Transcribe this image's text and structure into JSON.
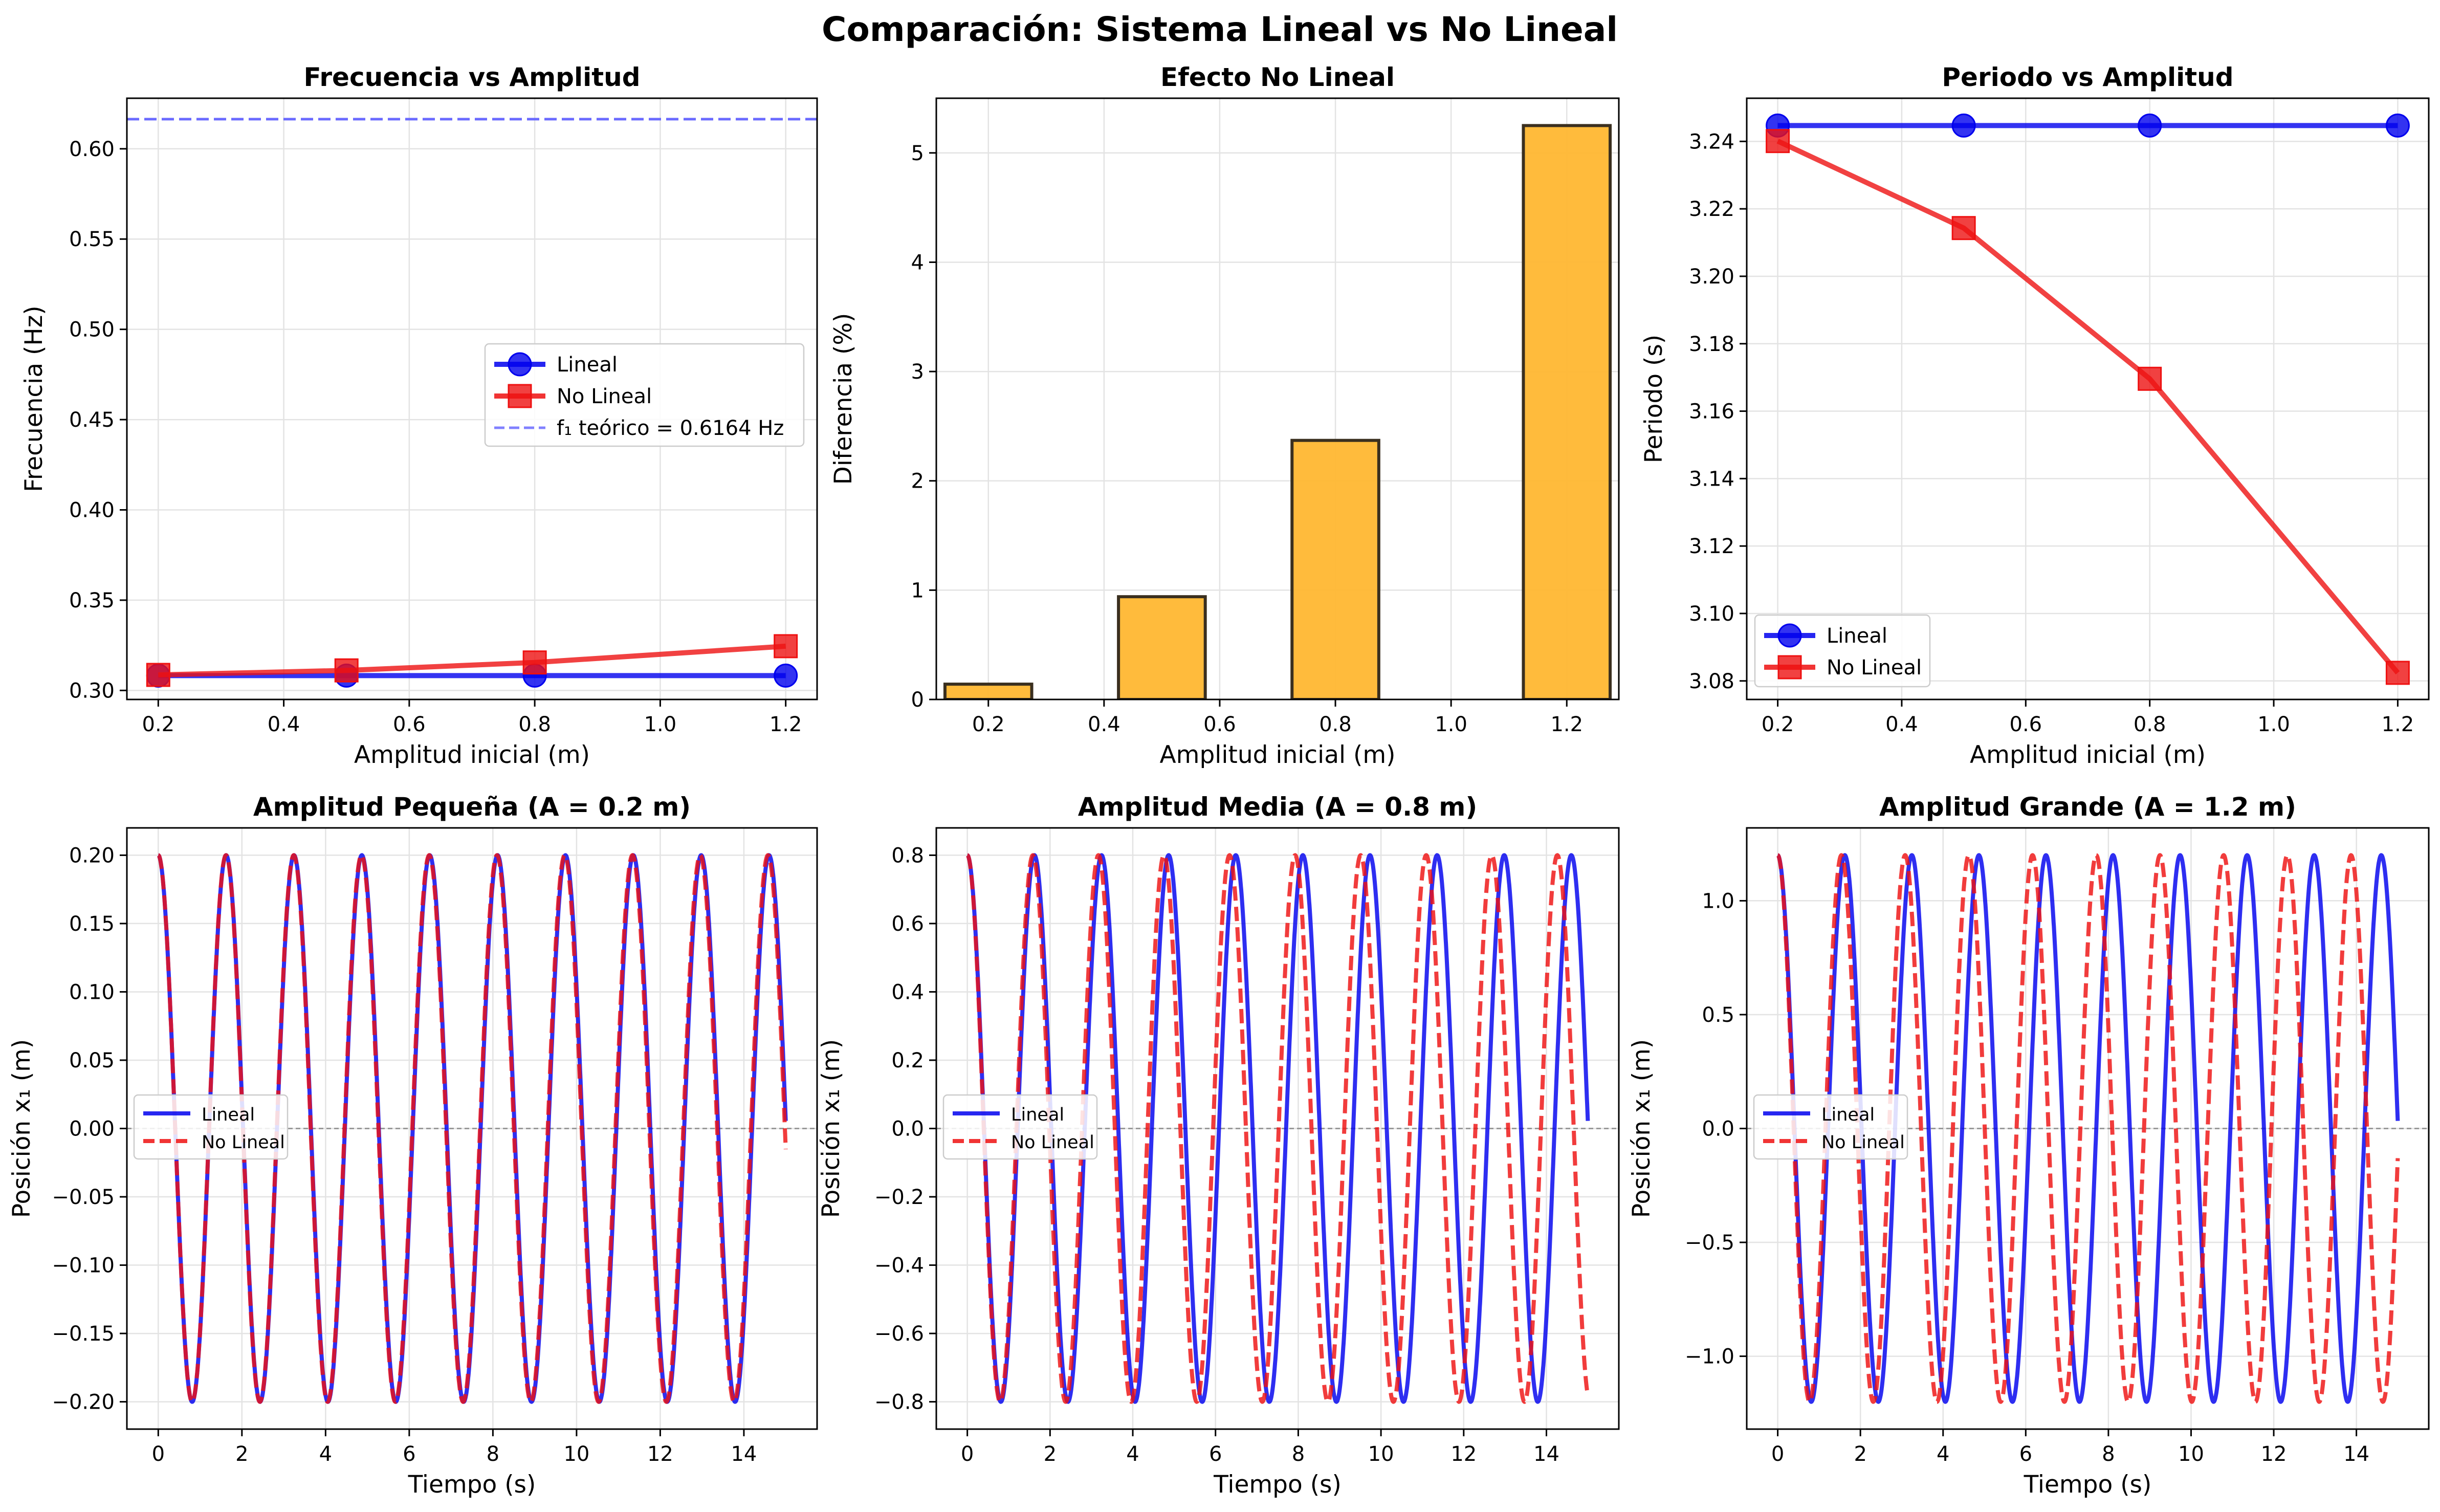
{
  "figure": {
    "suptitle": "Comparación: Sistema Lineal vs No Lineal"
  },
  "colors": {
    "lineal": "#0000ee",
    "no_lineal": "#ee1111",
    "bar_fill": "#ffb732",
    "bar_edge": "#3a2f1f",
    "theory_line": "#6a6aff",
    "grid": "#e3e3e3"
  },
  "chart_data": [
    {
      "id": "freq",
      "type": "line",
      "title": "Frecuencia vs Amplitud",
      "xlabel": "Amplitud inicial (m)",
      "ylabel": "Frecuencia (Hz)",
      "xlim": [
        0.15,
        1.25
      ],
      "ylim": [
        0.295,
        0.628
      ],
      "xticks": [
        0.2,
        0.4,
        0.6,
        0.8,
        1.0,
        1.2
      ],
      "xtick_labels": [
        "0.2",
        "0.4",
        "0.6",
        "0.8",
        "1.0",
        "1.2"
      ],
      "yticks": [
        0.3,
        0.35,
        0.4,
        0.45,
        0.5,
        0.55,
        0.6
      ],
      "ytick_labels": [
        "0.30",
        "0.35",
        "0.40",
        "0.45",
        "0.50",
        "0.55",
        "0.60"
      ],
      "grid": true,
      "legend_position": "center-right",
      "series": [
        {
          "name": "Lineal",
          "marker": "circle",
          "x": [
            0.2,
            0.5,
            0.8,
            1.2
          ],
          "y": [
            0.3082,
            0.3082,
            0.3082,
            0.3082
          ]
        },
        {
          "name": "No Lineal",
          "marker": "square",
          "x": [
            0.2,
            0.5,
            0.8,
            1.2
          ],
          "y": [
            0.3086,
            0.3111,
            0.3155,
            0.3245
          ]
        }
      ],
      "reference_line": {
        "name": "f₁ teórico = 0.6164 Hz",
        "y": 0.6164,
        "style": "dashed"
      }
    },
    {
      "id": "diff",
      "type": "bar",
      "title": "Efecto No Lineal",
      "xlabel": "Amplitud inicial (m)",
      "ylabel": "Diferencia (%)",
      "xlim": [
        0.11,
        1.29
      ],
      "ylim": [
        0,
        5.5
      ],
      "xticks": [
        0.2,
        0.4,
        0.6,
        0.8,
        1.0,
        1.2
      ],
      "xtick_labels": [
        "0.2",
        "0.4",
        "0.6",
        "0.8",
        "1.0",
        "1.2"
      ],
      "yticks": [
        0,
        1,
        2,
        3,
        4,
        5
      ],
      "ytick_labels": [
        "0",
        "1",
        "2",
        "3",
        "4",
        "5"
      ],
      "grid": true,
      "bar_width": 0.15,
      "x": [
        0.2,
        0.5,
        0.8,
        1.2
      ],
      "values": [
        0.14,
        0.94,
        2.37,
        5.25
      ]
    },
    {
      "id": "period",
      "type": "line",
      "title": "Periodo vs Amplitud",
      "xlabel": "Amplitud inicial (m)",
      "ylabel": "Periodo (s)",
      "xlim": [
        0.15,
        1.25
      ],
      "ylim": [
        3.0745,
        3.2528
      ],
      "xticks": [
        0.2,
        0.4,
        0.6,
        0.8,
        1.0,
        1.2
      ],
      "xtick_labels": [
        "0.2",
        "0.4",
        "0.6",
        "0.8",
        "1.0",
        "1.2"
      ],
      "yticks": [
        3.08,
        3.1,
        3.12,
        3.14,
        3.16,
        3.18,
        3.2,
        3.22,
        3.24
      ],
      "ytick_labels": [
        "3.08",
        "3.10",
        "3.12",
        "3.14",
        "3.16",
        "3.18",
        "3.20",
        "3.22",
        "3.24"
      ],
      "grid": true,
      "legend_position": "lower-left",
      "series": [
        {
          "name": "Lineal",
          "marker": "circle",
          "x": [
            0.2,
            0.5,
            0.8,
            1.2
          ],
          "y": [
            3.2447,
            3.2447,
            3.2447,
            3.2447
          ]
        },
        {
          "name": "No Lineal",
          "marker": "square",
          "x": [
            0.2,
            0.5,
            0.8,
            1.2
          ],
          "y": [
            3.2401,
            3.2143,
            3.1696,
            3.0824
          ]
        }
      ]
    },
    {
      "id": "small",
      "type": "line",
      "title": "Amplitud Pequeña (A = 0.2 m)",
      "xlabel": "Tiempo (s)",
      "ylabel": "Posición x₁ (m)",
      "xlim": [
        -0.75,
        15.75
      ],
      "ylim": [
        -0.22,
        0.22
      ],
      "xticks": [
        0,
        2,
        4,
        6,
        8,
        10,
        12,
        14
      ],
      "xtick_labels": [
        "0",
        "2",
        "4",
        "6",
        "8",
        "10",
        "12",
        "14"
      ],
      "yticks": [
        -0.2,
        -0.15,
        -0.1,
        -0.05,
        0,
        0.05,
        0.1,
        0.15,
        0.2
      ],
      "ytick_labels": [
        "−0.20",
        "−0.15",
        "−0.10",
        "−0.05",
        "0.00",
        "0.05",
        "0.10",
        "0.15",
        "0.20"
      ],
      "grid": true,
      "legend_position": "center-left",
      "zero_line": true,
      "t_range": [
        0,
        15
      ],
      "series": [
        {
          "name": "Lineal",
          "style": "solid",
          "amplitude": 0.2,
          "period": 1.6224
        },
        {
          "name": "No Lineal",
          "style": "dashed",
          "amplitude": 0.2,
          "period": 1.6195
        }
      ]
    },
    {
      "id": "medium",
      "type": "line",
      "title": "Amplitud Media (A = 0.8 m)",
      "xlabel": "Tiempo (s)",
      "ylabel": "Posición x₁ (m)",
      "xlim": [
        -0.75,
        15.75
      ],
      "ylim": [
        -0.88,
        0.88
      ],
      "xticks": [
        0,
        2,
        4,
        6,
        8,
        10,
        12,
        14
      ],
      "xtick_labels": [
        "0",
        "2",
        "4",
        "6",
        "8",
        "10",
        "12",
        "14"
      ],
      "yticks": [
        -0.8,
        -0.6,
        -0.4,
        -0.2,
        0,
        0.2,
        0.4,
        0.6,
        0.8
      ],
      "ytick_labels": [
        "−0.8",
        "−0.6",
        "−0.4",
        "−0.2",
        "0.0",
        "0.2",
        "0.4",
        "0.6",
        "0.8"
      ],
      "grid": true,
      "legend_position": "center-left",
      "zero_line": true,
      "t_range": [
        0,
        15
      ],
      "series": [
        {
          "name": "Lineal",
          "style": "solid",
          "amplitude": 0.8,
          "period": 1.6224
        },
        {
          "name": "No Lineal",
          "style": "dashed",
          "amplitude": 0.8,
          "period": 1.5848
        }
      ]
    },
    {
      "id": "large",
      "type": "line",
      "title": "Amplitud Grande (A = 1.2 m)",
      "xlabel": "Tiempo (s)",
      "ylabel": "Posición x₁ (m)",
      "xlim": [
        -0.75,
        15.75
      ],
      "ylim": [
        -1.32,
        1.32
      ],
      "xticks": [
        0,
        2,
        4,
        6,
        8,
        10,
        12,
        14
      ],
      "xtick_labels": [
        "0",
        "2",
        "4",
        "6",
        "8",
        "10",
        "12",
        "14"
      ],
      "yticks": [
        -1.0,
        -0.5,
        0,
        0.5,
        1.0
      ],
      "ytick_labels": [
        "−1.0",
        "−0.5",
        "0.0",
        "0.5",
        "1.0"
      ],
      "grid": true,
      "legend_position": "center-left",
      "zero_line": true,
      "t_range": [
        0,
        15
      ],
      "series": [
        {
          "name": "Lineal",
          "style": "solid",
          "amplitude": 1.2,
          "period": 1.6224
        },
        {
          "name": "No Lineal",
          "style": "dashed",
          "amplitude": 1.2,
          "period": 1.5412
        }
      ]
    }
  ]
}
